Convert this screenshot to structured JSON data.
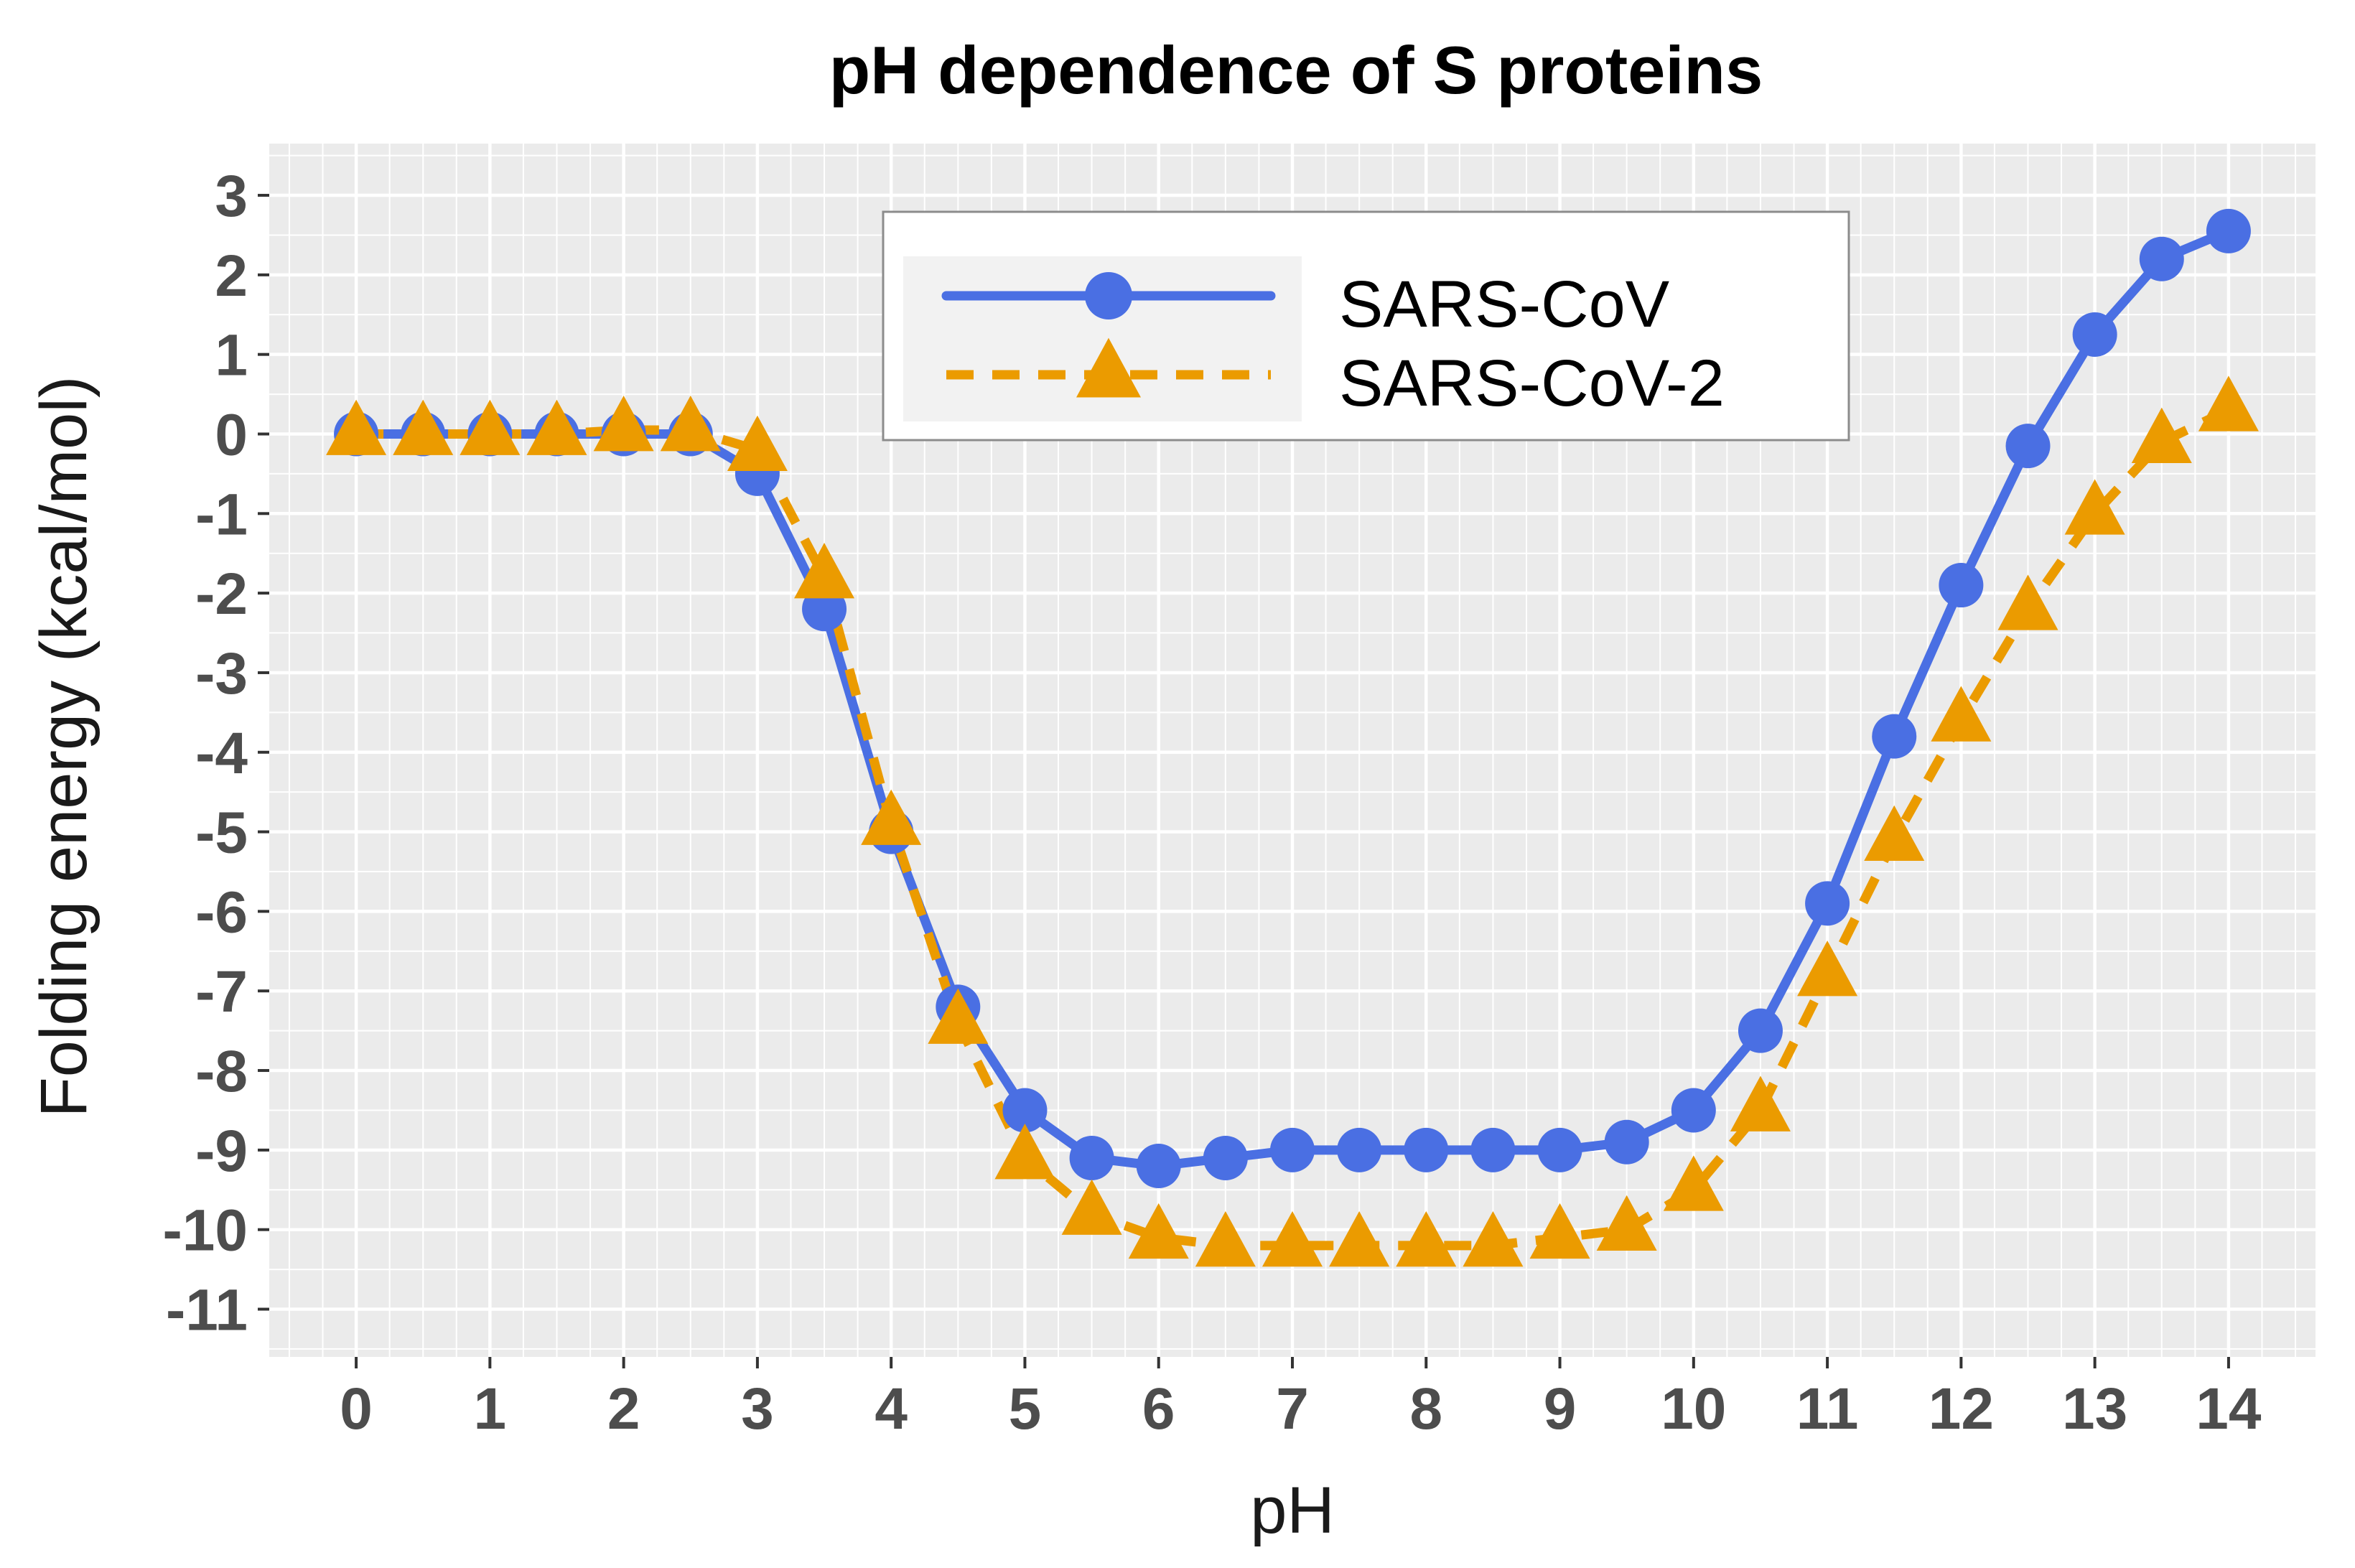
{
  "chart_data": {
    "type": "line",
    "title": "pH dependence of S proteins",
    "xlabel": "pH",
    "ylabel": "Folding energy (kcal/mol)",
    "xlim": [
      -0.65,
      14.65
    ],
    "ylim": [
      -11.6,
      3.65
    ],
    "x_ticks": [
      0,
      1,
      2,
      3,
      4,
      5,
      6,
      7,
      8,
      9,
      10,
      11,
      12,
      13,
      14
    ],
    "y_ticks": [
      3,
      2,
      1,
      0,
      -1,
      -2,
      -3,
      -4,
      -5,
      -6,
      -7,
      -8,
      -9,
      -10,
      -11
    ],
    "grid": true,
    "legend_position": "top-center",
    "x": [
      0,
      0.5,
      1,
      1.5,
      2,
      2.5,
      3,
      3.5,
      4,
      4.5,
      5,
      5.5,
      6,
      6.5,
      7,
      7.5,
      8,
      8.5,
      9,
      9.5,
      10,
      10.5,
      11,
      11.5,
      12,
      12.5,
      13,
      13.5,
      14
    ],
    "series": [
      {
        "name": "SARS-CoV",
        "color": "#4a6fe3",
        "marker": "circle",
        "line_style": "solid",
        "values": [
          0,
          0,
          0,
          0,
          0,
          0,
          -0.5,
          -2.2,
          -5.0,
          -7.2,
          -8.5,
          -9.1,
          -9.2,
          -9.1,
          -9.0,
          -9.0,
          -9.0,
          -9.0,
          -9.0,
          -8.9,
          -8.5,
          -7.5,
          -5.9,
          -3.8,
          -1.9,
          -0.15,
          1.25,
          2.2,
          2.55
        ]
      },
      {
        "name": "SARS-CoV-2",
        "color": "#eb9b00",
        "marker": "triangle",
        "line_style": "dashed",
        "values": [
          0,
          0,
          0,
          0,
          0.05,
          0.05,
          -0.2,
          -1.8,
          -4.9,
          -7.4,
          -9.1,
          -9.8,
          -10.1,
          -10.2,
          -10.2,
          -10.2,
          -10.2,
          -10.2,
          -10.1,
          -10.0,
          -9.5,
          -8.5,
          -6.8,
          -5.1,
          -3.6,
          -2.2,
          -1.0,
          -0.1,
          0.3
        ]
      }
    ]
  }
}
